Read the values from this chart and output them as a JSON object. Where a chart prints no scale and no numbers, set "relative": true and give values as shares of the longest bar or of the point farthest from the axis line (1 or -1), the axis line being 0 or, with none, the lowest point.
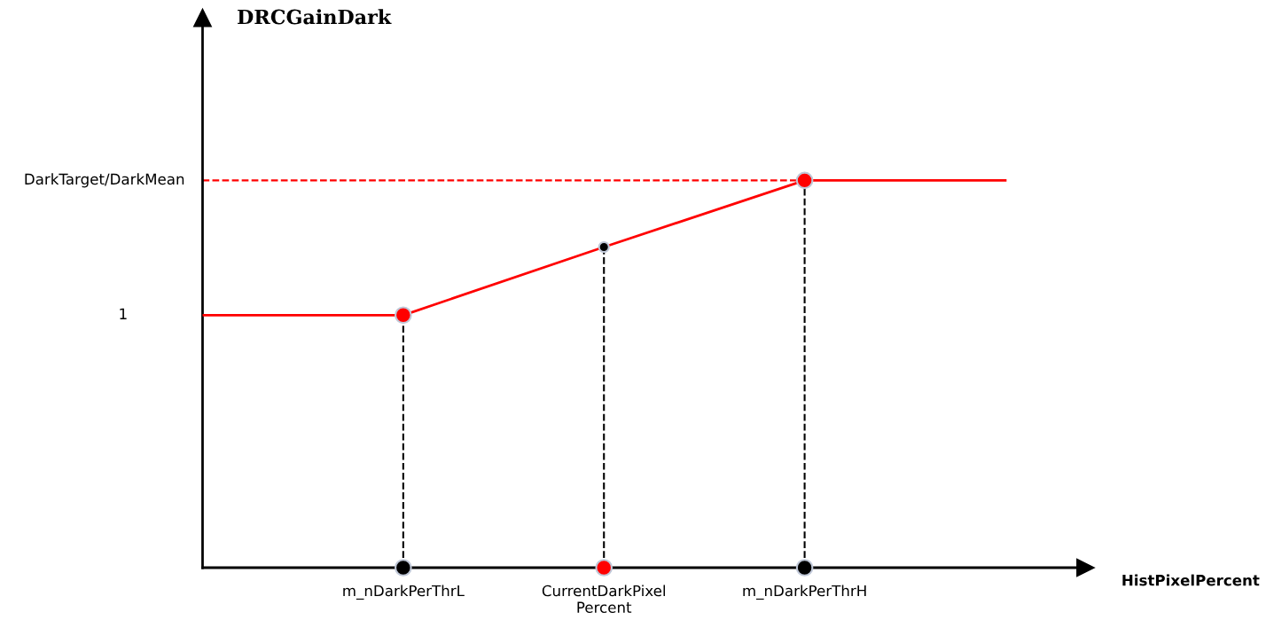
{
  "chart_data": {
    "type": "line",
    "relative": true,
    "xlabel": "HistPixelPercent",
    "tick_labels": "x",
    "categories": [
      null,
      "m_nDarkPerThrL",
      "CurrentDarkPixel\nPercent",
      "m_nDarkPerThrH",
      null
    ],
    "series": [
      {
        "color": "#ff0000",
        "values": [
          0.652,
          0.652,
          0.828,
          1,
          1
        ]
      },
      {
        "type": "line",
        "name": "DarkTarget/DarkMean",
        "color": "#ff0000",
        "line_style": "dashed",
        "values": [
          1,
          1,
          1,
          1,
          null
        ]
      },
      {
        "type": "lollipop",
        "line_style": "dashed",
        "color": "#000000",
        "colors": [
          null,
          "#ff0000",
          "#000000",
          "#ff0000",
          null
        ],
        "values": [
          null,
          0.652,
          0.828,
          1,
          null
        ],
        "sizes": [
          null,
          1,
          0.4,
          1,
          null
        ]
      },
      {
        "type": "scatter",
        "colors": [
          null,
          "#000000",
          "#ff0000",
          "#000000",
          null
        ],
        "values": [
          null,
          0,
          0,
          0,
          null
        ]
      }
    ],
    "annotations": [
      "1",
      "DRCGainDark"
    ]
  }
}
